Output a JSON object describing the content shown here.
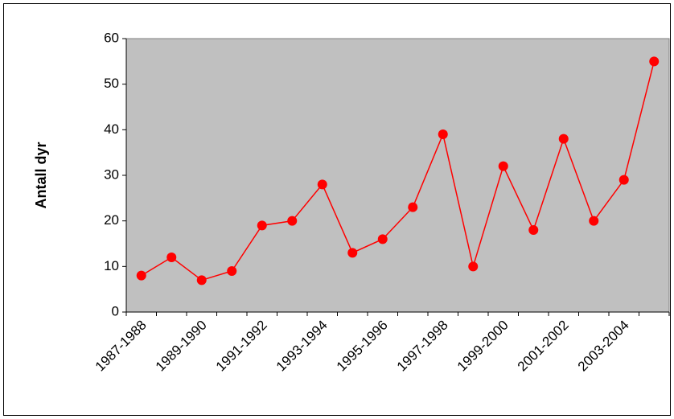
{
  "chart_data": {
    "type": "line",
    "y_label": "Antall dyr",
    "categories": [
      "1987-1988",
      null,
      "1989-1990",
      null,
      "1991-1992",
      null,
      "1993-1994",
      null,
      "1995-1996",
      null,
      "1997-1998",
      null,
      "1999-2000",
      null,
      "2001-2002",
      null,
      "2003-2004",
      null
    ],
    "series": [
      {
        "name": "Antall dyr",
        "color": "#ff0000",
        "values": [
          8,
          12,
          7,
          9,
          19,
          20,
          28,
          13,
          16,
          23,
          39,
          10,
          32,
          18,
          38,
          20,
          29,
          55
        ]
      }
    ],
    "ylim": [
      0,
      60
    ],
    "yticks": [
      0,
      10,
      20,
      30,
      40,
      50,
      60
    ],
    "plot_background": "#c0c0c0"
  }
}
